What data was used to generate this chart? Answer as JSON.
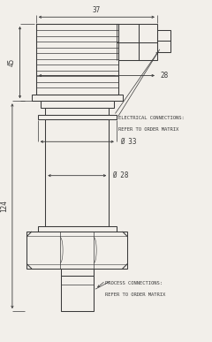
{
  "bg_color": "#f2efea",
  "line_color": "#3a3a3a",
  "lw": 0.75,
  "fig_width": 2.4,
  "fig_height": 3.87,
  "dpi": 100,
  "font_size_dim": 5.5,
  "font_size_label": 4.0,
  "dim_37_label": "37",
  "dim_45_label": "45",
  "dim_124_label": "124",
  "dim_28t_label": "28",
  "dim_33_label": "Ø 33",
  "dim_28b_label": "Ø 28",
  "elec_text1": "ELECTRICAL CONNECTIONS:",
  "elec_text2": "REFER TO ORDER MATRIX",
  "proc_text1": "PROCESS CONNECTIONS:",
  "proc_text2": "REFER TO ORDER MATRIX"
}
